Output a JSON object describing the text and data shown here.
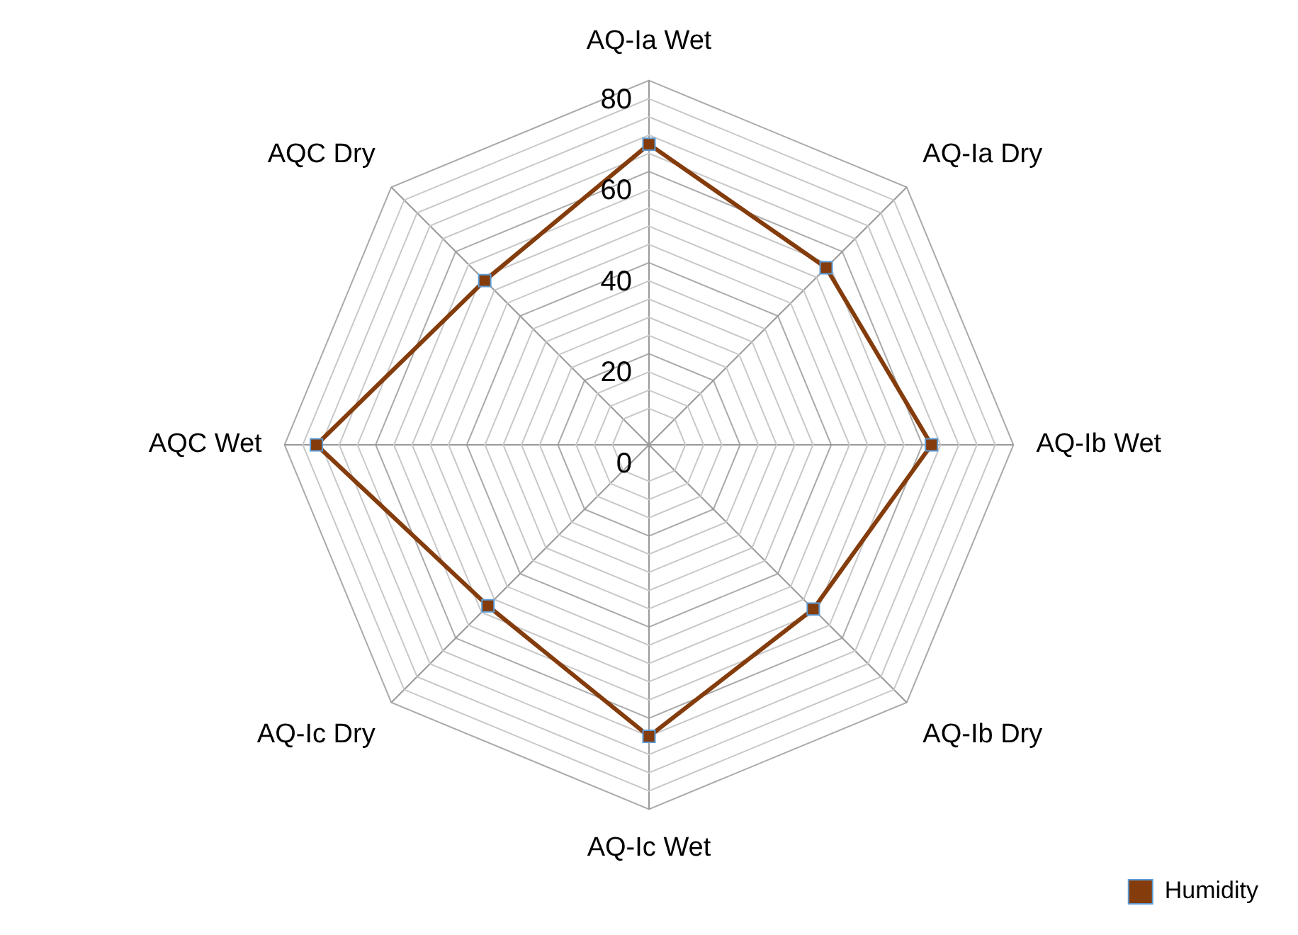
{
  "chart_data": {
    "type": "radar",
    "categories": [
      "AQ-Ia Wet",
      "AQ-Ia Dry",
      "AQ-Ib Wet",
      "AQ-Ib Dry",
      "AQ-Ic Wet",
      "AQ-Ic Dry",
      "AQC Wet",
      "AQC Dry"
    ],
    "series": [
      {
        "name": "Humidity",
        "color": "#843c0c",
        "values": [
          66,
          55,
          62,
          51,
          64,
          50,
          73,
          51
        ]
      }
    ],
    "ylim": [
      0,
      80
    ],
    "yticks": [
      0,
      20,
      40,
      60,
      80
    ],
    "grid": true,
    "legend": "bottom right",
    "marker": "square",
    "line_style": "solid"
  }
}
